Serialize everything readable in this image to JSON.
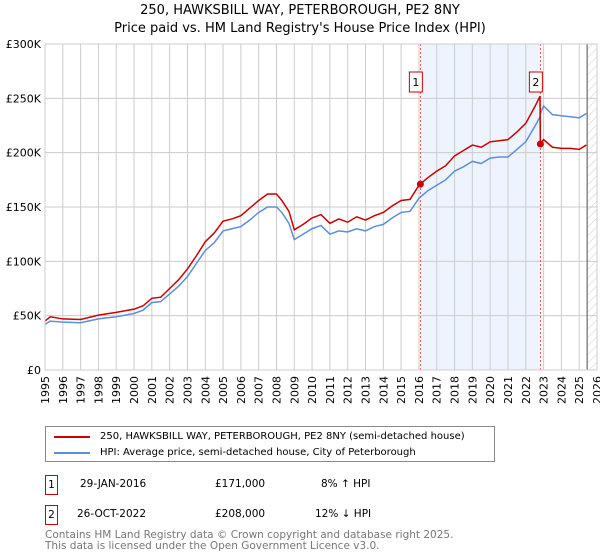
{
  "title": "250, HAWKSBILL WAY, PETERBOROUGH, PE2 8NY",
  "subtitle": "Price paid vs. HM Land Registry's House Price Index (HPI)",
  "chart_data": {
    "type": "line",
    "xlim": [
      1995,
      2026
    ],
    "ylim": [
      0,
      300000
    ],
    "x_ticks": [
      1995,
      1996,
      1997,
      1998,
      1999,
      2000,
      2001,
      2002,
      2003,
      2004,
      2005,
      2006,
      2007,
      2008,
      2009,
      2010,
      2011,
      2012,
      2013,
      2014,
      2015,
      2016,
      2017,
      2018,
      2019,
      2020,
      2021,
      2022,
      2023,
      2024,
      2025,
      2026
    ],
    "y_ticks": [
      {
        "v": 0,
        "label": "£0"
      },
      {
        "v": 50000,
        "label": "£50K"
      },
      {
        "v": 100000,
        "label": "£100K"
      },
      {
        "v": 150000,
        "label": "£150K"
      },
      {
        "v": 200000,
        "label": "£200K"
      },
      {
        "v": 250000,
        "label": "£250K"
      },
      {
        "v": 300000,
        "label": "£300K"
      }
    ],
    "grid": true,
    "x": [
      1995,
      1995.3,
      1996,
      1997,
      1998,
      1999,
      2000,
      2000.5,
      2001,
      2001.5,
      2002,
      2002.5,
      2003,
      2003.5,
      2004,
      2004.5,
      2005,
      2005.5,
      2006,
      2006.5,
      2007,
      2007.5,
      2008,
      2008.3,
      2008.7,
      2009,
      2009.5,
      2010,
      2010.5,
      2011,
      2011.5,
      2012,
      2012.5,
      2013,
      2013.5,
      2014,
      2014.5,
      2015,
      2015.5,
      2016,
      2016.5,
      2017,
      2017.5,
      2018,
      2018.5,
      2019,
      2019.5,
      2020,
      2020.5,
      2021,
      2021.5,
      2022,
      2022.5,
      2022.8,
      2022.82,
      2023,
      2023.5,
      2024,
      2024.5,
      2025,
      2025.4
    ],
    "series": [
      {
        "name": "250, HAWKSBILL WAY, PETERBOROUGH, PE2 8NY (semi-detached house)",
        "color": "#cc0000",
        "values": [
          45000,
          49000,
          47000,
          46500,
          50500,
          53000,
          56000,
          59000,
          66000,
          67000,
          75000,
          83000,
          93000,
          105000,
          118000,
          126000,
          137000,
          139000,
          142000,
          149000,
          156000,
          162000,
          162000,
          156000,
          146000,
          129000,
          134000,
          140000,
          143000,
          135000,
          139000,
          136000,
          141000,
          138000,
          142000,
          145000,
          151000,
          156000,
          157000,
          170000,
          177000,
          183000,
          188000,
          197000,
          202000,
          207000,
          205000,
          210000,
          211000,
          212000,
          219000,
          227000,
          242000,
          252000,
          208000,
          212000,
          205000,
          204000,
          204000,
          203000,
          207000
        ]
      },
      {
        "name": "HPI: Average price, semi-detached house, City of Peterborough",
        "color": "#5b8fd6",
        "values": [
          42000,
          45000,
          44000,
          43500,
          47000,
          49000,
          52000,
          55000,
          62000,
          63000,
          70000,
          77000,
          86000,
          98000,
          110000,
          117000,
          128000,
          130000,
          132000,
          138000,
          145000,
          150000,
          150000,
          145000,
          135000,
          120000,
          125000,
          130000,
          133000,
          125000,
          128000,
          127000,
          130000,
          128000,
          132000,
          134000,
          140000,
          145000,
          146000,
          158000,
          165000,
          170000,
          175000,
          183000,
          187000,
          192000,
          190000,
          195000,
          196000,
          196000,
          203000,
          210000,
          224000,
          233000,
          236000,
          243000,
          235000,
          234000,
          233000,
          232000,
          236000
        ]
      }
    ],
    "shaded_range": [
      2016.08,
      2022.82
    ],
    "forecast_from": 2025.45,
    "markers": [
      {
        "label": "1",
        "x": 2016.08,
        "y": 171000
      },
      {
        "label": "2",
        "x": 2022.82,
        "y": 208000
      }
    ]
  },
  "legend": [
    "250, HAWKSBILL WAY, PETERBOROUGH, PE2 8NY (semi-detached house)",
    "HPI: Average price, semi-detached house, City of Peterborough"
  ],
  "transactions": [
    {
      "num": "1",
      "date": "29-JAN-2016",
      "price": "£171,000",
      "hpi": "8% ↑ HPI"
    },
    {
      "num": "2",
      "date": "26-OCT-2022",
      "price": "£208,000",
      "hpi": "12% ↓ HPI"
    }
  ],
  "footer": [
    "Contains HM Land Registry data © Crown copyright and database right 2025.",
    "This data is licensed under the Open Government Licence v3.0."
  ]
}
